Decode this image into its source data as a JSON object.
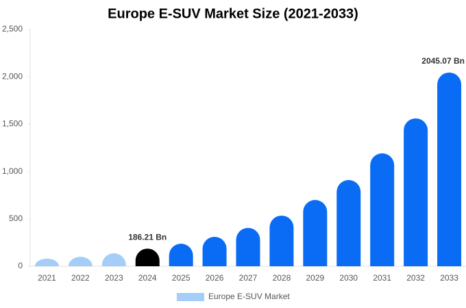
{
  "chart_data": {
    "type": "bar",
    "title": "Europe E-SUV Market Size (2021-2033)",
    "categories": [
      "2021",
      "2022",
      "2023",
      "2024",
      "2025",
      "2026",
      "2027",
      "2028",
      "2029",
      "2030",
      "2031",
      "2032",
      "2033"
    ],
    "series": [
      {
        "name": "Europe E-SUV Market",
        "color": "#a4cdf8",
        "colors": [
          "#a4cdf8",
          "#a4cdf8",
          "#a4cdf8",
          "#000000",
          "#0a6cf5",
          "#0a6cf5",
          "#0a6cf5",
          "#0a6cf5",
          "#0a6cf5",
          "#0a6cf5",
          "#0a6cf5",
          "#0a6cf5",
          "#0a6cf5"
        ],
        "values": [
          80,
          100,
          137,
          186.21,
          238,
          311,
          405,
          535,
          700,
          910,
          1192,
          1561,
          2045.07
        ],
        "value_labels": [
          null,
          null,
          null,
          "186.21 Bn",
          null,
          null,
          null,
          null,
          null,
          null,
          null,
          null,
          "2045.07 Bn"
        ]
      }
    ],
    "ylim": [
      0,
      2500
    ],
    "yticks": [
      0,
      500,
      {
        "value": 1000,
        "label": "1,000"
      },
      {
        "value": 1500,
        "label": "1,500"
      },
      {
        "value": 2000,
        "label": "2,000"
      },
      {
        "value": 2500,
        "label": "2,500"
      }
    ],
    "grid": false,
    "legend": "bottom"
  }
}
